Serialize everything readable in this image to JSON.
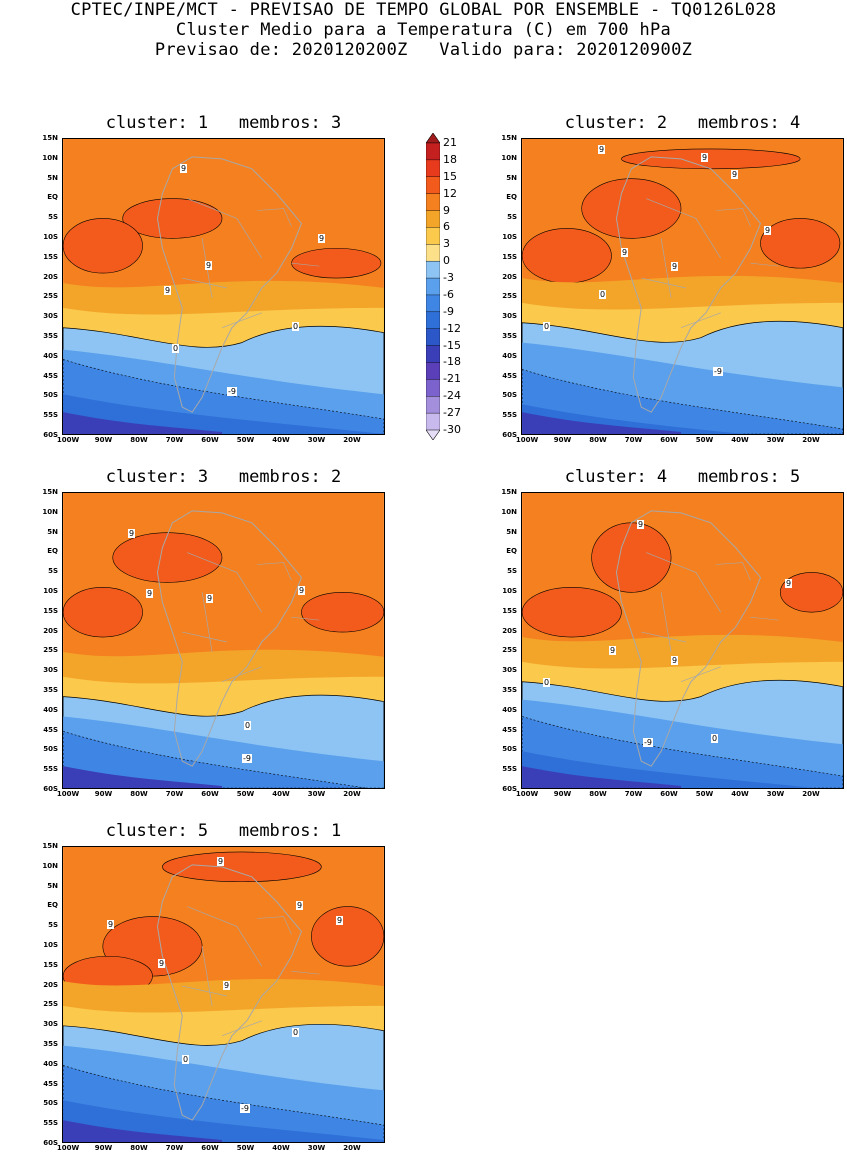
{
  "header": {
    "line1": "CPTEC/INPE/MCT - PREVISAO DE TEMPO GLOBAL POR ENSEMBLE - TQ0126L028",
    "line2": "Cluster Medio para a Temperatura (C) em 700 hPa",
    "line3": "Previsao de: 2020120200Z   Valido para: 2020120900Z"
  },
  "lat_labels": [
    "15N",
    "10N",
    "5N",
    "EQ",
    "5S",
    "10S",
    "15S",
    "20S",
    "25S",
    "30S",
    "35S",
    "40S",
    "45S",
    "50S",
    "55S",
    "60S"
  ],
  "lon_labels": [
    "100W",
    "90W",
    "80W",
    "70W",
    "60W",
    "50W",
    "40W",
    "30W",
    "20W"
  ],
  "colorbar": {
    "levels": [
      "21",
      "18",
      "15",
      "12",
      "9",
      "6",
      "3",
      "0",
      "-3",
      "-6",
      "-9",
      "-12",
      "-15",
      "-18",
      "-21",
      "-24",
      "-27",
      "-30"
    ],
    "colors": [
      "#a01b1b",
      "#c52020",
      "#e83a1c",
      "#f25b1b",
      "#f5801f",
      "#f3a52a",
      "#fbc94c",
      "#fde08a",
      "#8ec4f3",
      "#5aa0ec",
      "#3f86e4",
      "#2f6fd8",
      "#2b57c8",
      "#3a3fb8",
      "#5a3fb8",
      "#7c62cc",
      "#a48fdc",
      "#c9baee",
      "#e6ddf7"
    ]
  },
  "clusters": [
    {
      "title": "cluster: 1   membros: 3",
      "labels": [
        "9",
        "9",
        "9",
        "9",
        "0",
        "0",
        "-9"
      ]
    },
    {
      "title": "cluster: 2   membros: 4",
      "labels": [
        "9",
        "9",
        "9",
        "9",
        "9",
        "9",
        "0",
        "0",
        "-9"
      ]
    },
    {
      "title": "cluster: 3   membros: 2",
      "labels": [
        "9",
        "9",
        "9",
        "9",
        "0",
        "-9"
      ]
    },
    {
      "title": "cluster: 4   membros: 5",
      "labels": [
        "9",
        "9",
        "9",
        "9",
        "0",
        "0",
        "-9"
      ]
    },
    {
      "title": "cluster: 5   membros: 1",
      "labels": [
        "9",
        "9",
        "9",
        "9",
        "9",
        "9",
        "0",
        "0",
        "-9"
      ]
    }
  ]
}
